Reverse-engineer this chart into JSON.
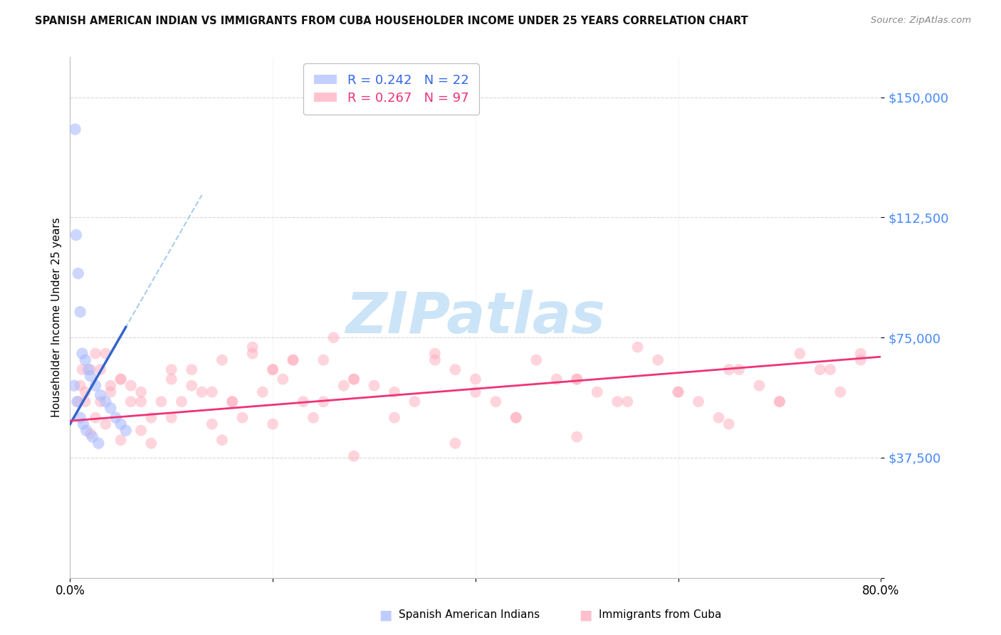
{
  "title": "SPANISH AMERICAN INDIAN VS IMMIGRANTS FROM CUBA HOUSEHOLDER INCOME UNDER 25 YEARS CORRELATION CHART",
  "source": "Source: ZipAtlas.com",
  "ylabel": "Householder Income Under 25 years",
  "xlim": [
    0.0,
    80.0
  ],
  "ylim": [
    0,
    162500
  ],
  "ytick_vals": [
    0,
    37500,
    75000,
    112500,
    150000
  ],
  "ytick_labels": [
    "",
    "$37,500",
    "$75,000",
    "$112,500",
    "$150,000"
  ],
  "xtick_vals": [
    0,
    20,
    40,
    60,
    80
  ],
  "xtick_labels": [
    "0.0%",
    "",
    "",
    "",
    "80.0%"
  ],
  "blue_R": 0.242,
  "blue_N": 22,
  "pink_R": 0.267,
  "pink_N": 97,
  "blue_label": "Spanish American Indians",
  "pink_label": "Immigrants from Cuba",
  "blue_scatter_color": "#aabbff",
  "pink_scatter_color": "#ffaabb",
  "blue_trend_color": "#3366cc",
  "blue_dash_color": "#aaccee",
  "pink_trend_color": "#ee3377",
  "ytick_color": "#4488ff",
  "grid_color": "#cccccc",
  "watermark_color": "#ddeeff",
  "title_color": "#111111",
  "source_color": "#888888",
  "blue_x": [
    0.5,
    0.6,
    0.8,
    1.0,
    1.2,
    1.5,
    1.8,
    2.0,
    2.5,
    3.0,
    3.5,
    4.0,
    4.5,
    5.0,
    5.5,
    0.4,
    0.7,
    1.0,
    1.3,
    1.6,
    2.2,
    2.8
  ],
  "blue_y": [
    140000,
    107000,
    95000,
    83000,
    70000,
    68000,
    65000,
    63000,
    60000,
    57000,
    55000,
    53000,
    50000,
    48000,
    46000,
    60000,
    55000,
    50000,
    48000,
    46000,
    44000,
    42000
  ],
  "pink_x": [
    0.8,
    1.0,
    1.2,
    1.5,
    2.0,
    2.5,
    3.0,
    3.5,
    4.0,
    5.0,
    6.0,
    7.0,
    8.0,
    9.0,
    10.0,
    11.0,
    12.0,
    13.0,
    14.0,
    15.0,
    16.0,
    17.0,
    18.0,
    19.0,
    20.0,
    21.0,
    22.0,
    23.0,
    24.0,
    25.0,
    26.0,
    27.0,
    28.0,
    30.0,
    32.0,
    34.0,
    36.0,
    38.0,
    40.0,
    42.0,
    44.0,
    46.0,
    48.0,
    50.0,
    52.0,
    54.0,
    56.0,
    58.0,
    60.0,
    62.0,
    64.0,
    66.0,
    68.0,
    70.0,
    72.0,
    74.0,
    76.0,
    78.0,
    2.0,
    3.0,
    4.0,
    5.0,
    6.0,
    7.0,
    8.0,
    10.0,
    12.0,
    14.0,
    16.0,
    18.0,
    20.0,
    22.0,
    25.0,
    28.0,
    32.0,
    36.0,
    40.0,
    44.0,
    50.0,
    55.0,
    60.0,
    65.0,
    70.0,
    75.0,
    1.5,
    2.5,
    3.5,
    5.0,
    7.0,
    10.0,
    15.0,
    20.0,
    28.0,
    38.0,
    50.0,
    65.0,
    78.0
  ],
  "pink_y": [
    55000,
    60000,
    65000,
    55000,
    45000,
    50000,
    65000,
    70000,
    60000,
    62000,
    55000,
    58000,
    42000,
    55000,
    62000,
    55000,
    65000,
    58000,
    48000,
    68000,
    55000,
    50000,
    72000,
    58000,
    65000,
    62000,
    68000,
    55000,
    50000,
    68000,
    75000,
    60000,
    62000,
    60000,
    58000,
    55000,
    70000,
    65000,
    62000,
    55000,
    50000,
    68000,
    62000,
    62000,
    58000,
    55000,
    72000,
    68000,
    58000,
    55000,
    50000,
    65000,
    60000,
    55000,
    70000,
    65000,
    58000,
    68000,
    65000,
    55000,
    58000,
    62000,
    60000,
    55000,
    50000,
    65000,
    60000,
    58000,
    55000,
    70000,
    65000,
    68000,
    55000,
    62000,
    50000,
    68000,
    58000,
    50000,
    62000,
    55000,
    58000,
    65000,
    55000,
    65000,
    58000,
    70000,
    48000,
    43000,
    46000,
    50000,
    43000,
    48000,
    38000,
    42000,
    44000,
    48000,
    70000
  ]
}
